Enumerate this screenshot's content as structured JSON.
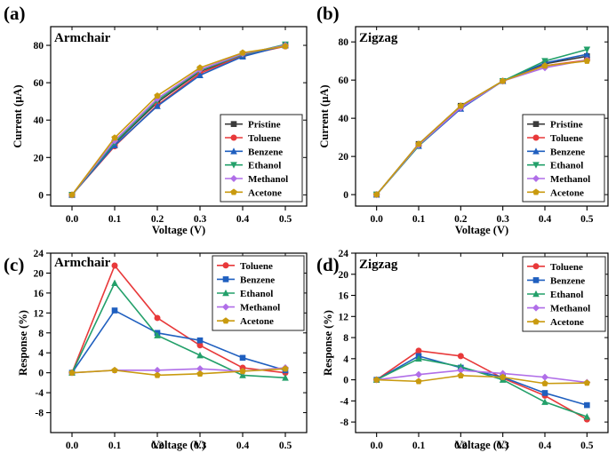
{
  "chart_data": [
    {
      "type": "line",
      "panel": "(a)",
      "title": "Armchair",
      "xlabel": "Voltage (V)",
      "ylabel": "Current (µA)",
      "x": [
        0.0,
        0.1,
        0.2,
        0.3,
        0.4,
        0.5
      ],
      "xticks": [
        "0.0",
        "0.1",
        "0.2",
        "0.3",
        "0.4",
        "0.5"
      ],
      "xlim": [
        -0.05,
        0.55
      ],
      "ylim": [
        -6,
        90
      ],
      "yticks": [
        0,
        20,
        40,
        60,
        80
      ],
      "legend": "bottom-right",
      "grid": false,
      "series": [
        {
          "name": "Pristine",
          "color": "#3b3b3b",
          "marker": "square",
          "values": [
            0,
            27.5,
            49.5,
            66,
            74.5,
            80
          ]
        },
        {
          "name": "Toluene",
          "color": "#e8393a",
          "marker": "circle",
          "values": [
            0,
            26,
            48,
            65,
            74.5,
            79.5
          ]
        },
        {
          "name": "Benzene",
          "color": "#1f5fbf",
          "marker": "triangle",
          "values": [
            0,
            26.5,
            47.5,
            64,
            74,
            80
          ]
        },
        {
          "name": "Ethanol",
          "color": "#23a06a",
          "marker": "triangle-down",
          "values": [
            0,
            28,
            50.5,
            66.5,
            75,
            80.5
          ]
        },
        {
          "name": "Methanol",
          "color": "#b06ee8",
          "marker": "diamond",
          "values": [
            0,
            29,
            51.5,
            67,
            75.5,
            80
          ]
        },
        {
          "name": "Acetone",
          "color": "#c99a0f",
          "marker": "pentagon",
          "values": [
            0,
            30.5,
            53,
            68,
            76,
            79.5
          ]
        }
      ]
    },
    {
      "type": "line",
      "panel": "(b)",
      "title": "Zigzag",
      "xlabel": "Voltage (V)",
      "ylabel": "Current (µA)",
      "x": [
        0.0,
        0.1,
        0.2,
        0.3,
        0.4,
        0.5
      ],
      "xticks": [
        "0.0",
        "0.1",
        "0.2",
        "0.3",
        "0.4",
        "0.5"
      ],
      "xlim": [
        -0.05,
        0.55
      ],
      "ylim": [
        -6,
        88
      ],
      "yticks": [
        0,
        20,
        40,
        60,
        80
      ],
      "legend": "bottom-right",
      "grid": false,
      "series": [
        {
          "name": "Pristine",
          "color": "#3b3b3b",
          "marker": "square",
          "values": [
            0,
            26.5,
            46.5,
            59.5,
            68.5,
            72.5
          ]
        },
        {
          "name": "Toluene",
          "color": "#e8393a",
          "marker": "circle",
          "values": [
            0,
            26,
            45.5,
            59.5,
            67.5,
            70.5
          ]
        },
        {
          "name": "Benzene",
          "color": "#1f5fbf",
          "marker": "triangle",
          "values": [
            0,
            25.5,
            45,
            59.5,
            69,
            73.5
          ]
        },
        {
          "name": "Ethanol",
          "color": "#23a06a",
          "marker": "triangle-down",
          "values": [
            0,
            25.5,
            46,
            59.5,
            70,
            76
          ]
        },
        {
          "name": "Methanol",
          "color": "#b06ee8",
          "marker": "diamond",
          "values": [
            0,
            26,
            45.5,
            59.5,
            66.5,
            70.5
          ]
        },
        {
          "name": "Acetone",
          "color": "#c99a0f",
          "marker": "pentagon",
          "values": [
            0,
            26.5,
            46.5,
            59.5,
            67.5,
            70
          ]
        }
      ]
    },
    {
      "type": "line",
      "panel": "(c)",
      "title": "Armchair",
      "xlabel": "Voltage (V)",
      "ylabel": "Response (%)",
      "x": [
        0.0,
        0.1,
        0.2,
        0.3,
        0.4,
        0.5
      ],
      "xticks": [
        "0.0",
        "0.1",
        "0.2",
        "0.3",
        "0.4",
        "0.5"
      ],
      "xlim": [
        -0.05,
        0.55
      ],
      "ylim": [
        -12,
        24
      ],
      "yticks": [
        -8,
        -4,
        0,
        4,
        8,
        12,
        16,
        20,
        24
      ],
      "legend": "top-right",
      "grid": false,
      "series": [
        {
          "name": "Toluene",
          "color": "#e8393a",
          "marker": "circle",
          "values": [
            0,
            21.5,
            11,
            5.5,
            1,
            0
          ]
        },
        {
          "name": "Benzene",
          "color": "#1f5fbf",
          "marker": "square",
          "values": [
            0,
            12.5,
            8,
            6.5,
            3,
            0.5
          ]
        },
        {
          "name": "Ethanol",
          "color": "#23a06a",
          "marker": "triangle",
          "values": [
            0,
            18,
            7.5,
            3.5,
            -0.5,
            -1
          ]
        },
        {
          "name": "Methanol",
          "color": "#b06ee8",
          "marker": "diamond",
          "values": [
            0,
            0.5,
            0.5,
            0.8,
            0.3,
            1
          ]
        },
        {
          "name": "Acetone",
          "color": "#c99a0f",
          "marker": "pentagon",
          "values": [
            0,
            0.5,
            -0.5,
            -0.2,
            0.3,
            0.8
          ]
        }
      ]
    },
    {
      "type": "line",
      "panel": "(d)",
      "title": "Zigzag",
      "xlabel": "Voltage (V)",
      "ylabel": "Response (%)",
      "x": [
        0.0,
        0.1,
        0.2,
        0.3,
        0.4,
        0.5
      ],
      "xticks": [
        "0.0",
        "0.1",
        "0.2",
        "0.3",
        "0.4",
        "0.5"
      ],
      "xlim": [
        -0.05,
        0.55
      ],
      "ylim": [
        -10,
        24
      ],
      "yticks": [
        -8,
        -4,
        0,
        4,
        8,
        12,
        16,
        20,
        24
      ],
      "legend": "top-right",
      "grid": false,
      "series": [
        {
          "name": "Toluene",
          "color": "#e8393a",
          "marker": "circle",
          "values": [
            0,
            5.5,
            4.5,
            0.3,
            -3,
            -7.5
          ]
        },
        {
          "name": "Benzene",
          "color": "#1f5fbf",
          "marker": "square",
          "values": [
            0,
            4.5,
            2.3,
            0.5,
            -2.5,
            -4.8
          ]
        },
        {
          "name": "Ethanol",
          "color": "#23a06a",
          "marker": "triangle",
          "values": [
            0,
            4,
            2.5,
            0,
            -4.2,
            -7
          ]
        },
        {
          "name": "Methanol",
          "color": "#b06ee8",
          "marker": "diamond",
          "values": [
            0,
            1,
            1.8,
            1.2,
            0.5,
            -0.5
          ]
        },
        {
          "name": "Acetone",
          "color": "#c99a0f",
          "marker": "pentagon",
          "values": [
            0,
            -0.3,
            0.8,
            0.5,
            -0.7,
            -0.6
          ]
        }
      ]
    }
  ]
}
